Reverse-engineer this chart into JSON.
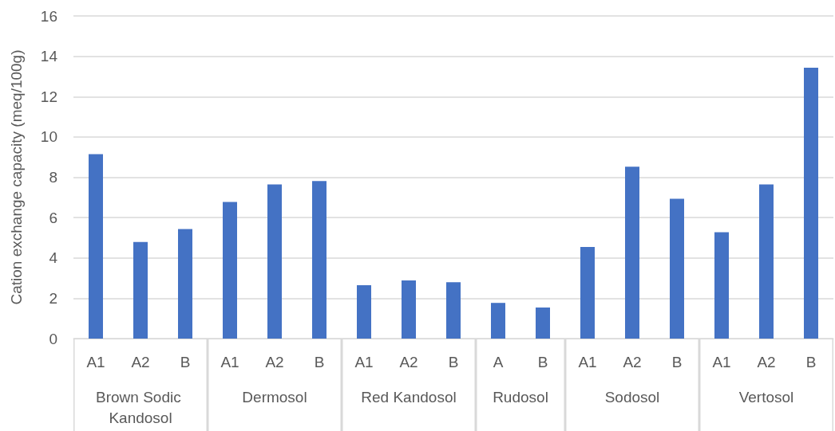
{
  "chart_data": [
    {
      "type": "bar",
      "xlabel": "Brown Sodic Kandosol",
      "ylabel": "Cation exchange capacity (meq/100g)",
      "categories": [
        "A1",
        "A2",
        "B"
      ],
      "values": [
        9.15,
        4.79,
        5.43
      ],
      "color": "#4472c4",
      "ylim": [
        0,
        16
      ],
      "yticks": [
        0,
        2,
        4,
        6,
        8,
        10,
        12,
        14,
        16
      ],
      "grid": "y"
    },
    {
      "type": "bar",
      "xlabel": "Dermosol",
      "categories": [
        "A1",
        "A2",
        "B"
      ],
      "values": [
        6.78,
        7.64,
        7.81
      ],
      "color": "#4472c4",
      "ylim": [
        0,
        16
      ],
      "yticks": [
        0,
        2,
        4,
        6,
        8,
        10,
        12,
        14,
        16
      ],
      "grid": "y",
      "tick_labels": "x"
    },
    {
      "type": "bar",
      "xlabel": "Red Kandosol",
      "categories": [
        "A1",
        "A2",
        "B"
      ],
      "values": [
        2.65,
        2.88,
        2.8
      ],
      "color": "#4472c4",
      "ylim": [
        0,
        16
      ],
      "yticks": [
        0,
        2,
        4,
        6,
        8,
        10,
        12,
        14,
        16
      ],
      "grid": "y",
      "tick_labels": "x"
    },
    {
      "type": "bar",
      "xlabel": "Rudosol",
      "categories": [
        "A",
        "B"
      ],
      "values": [
        1.77,
        1.54
      ],
      "color": "#4472c4",
      "ylim": [
        0,
        16
      ],
      "yticks": [
        0,
        2,
        4,
        6,
        8,
        10,
        12,
        14,
        16
      ],
      "grid": "y",
      "tick_labels": "x"
    },
    {
      "type": "bar",
      "xlabel": "Sodosol",
      "categories": [
        "A1",
        "A2",
        "B"
      ],
      "values": [
        4.54,
        8.52,
        6.93
      ],
      "color": "#4472c4",
      "ylim": [
        0,
        16
      ],
      "yticks": [
        0,
        2,
        4,
        6,
        8,
        10,
        12,
        14,
        16
      ],
      "grid": "y",
      "tick_labels": "x"
    },
    {
      "type": "bar",
      "xlabel": "Vertosol",
      "categories": [
        "A1",
        "A2",
        "B"
      ],
      "values": [
        5.27,
        7.64,
        13.43
      ],
      "color": "#4472c4",
      "ylim": [
        0,
        16
      ],
      "yticks": [
        0,
        2,
        4,
        6,
        8,
        10,
        12,
        14,
        16
      ],
      "grid": "y",
      "tick_labels": "x"
    }
  ]
}
